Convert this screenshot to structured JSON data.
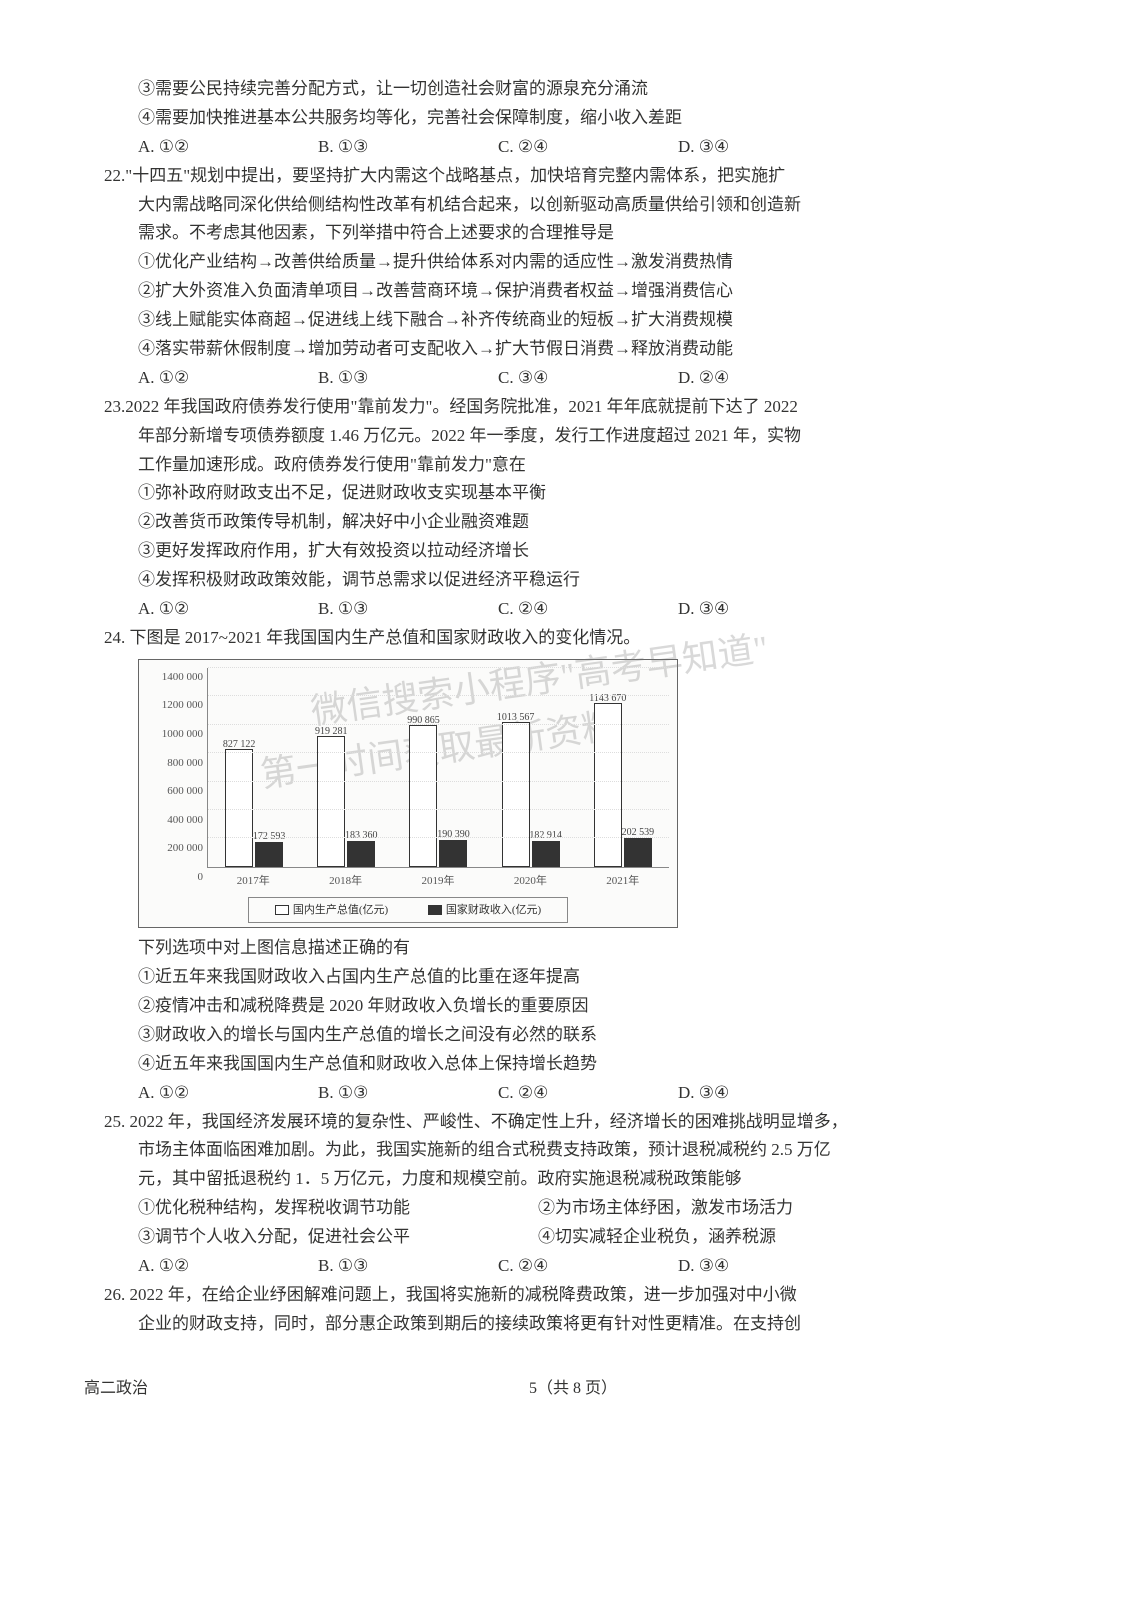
{
  "q21": {
    "opt3": "③需要公民持续完善分配方式，让一切创造社会财富的源泉充分涌流",
    "opt4": "④需要加快推进基本公共服务均等化，完善社会保障制度，缩小收入差距",
    "A": "A. ①②",
    "B": "B. ①③",
    "C": "C. ②④",
    "D": "D. ③④"
  },
  "q22": {
    "num": "22.",
    "stem1": "\"十四五\"规划中提出，要坚持扩大内需这个战略基点，加快培育完整内需体系，把实施扩",
    "stem2": "大内需战略同深化供给侧结构性改革有机结合起来，以创新驱动高质量供给引领和创造新",
    "stem3": "需求。不考虑其他因素，下列举措中符合上述要求的合理推导是",
    "o1": "①优化产业结构→改善供给质量→提升供给体系对内需的适应性→激发消费热情",
    "o2": "②扩大外资准入负面清单项目→改善营商环境→保护消费者权益→增强消费信心",
    "o3": "③线上赋能实体商超→促进线上线下融合→补齐传统商业的短板→扩大消费规模",
    "o4": "④落实带薪休假制度→增加劳动者可支配收入→扩大节假日消费→释放消费动能",
    "A": "A. ①②",
    "B": "B. ①③",
    "C": "C. ③④",
    "D": "D. ②④"
  },
  "q23": {
    "num": "23.",
    "stem1": "2022 年我国政府债券发行使用\"靠前发力\"。经国务院批准，2021 年年底就提前下达了 2022",
    "stem2": "年部分新增专项债券额度 1.46 万亿元。2022 年一季度，发行工作进度超过 2021 年，实物",
    "stem3": "工作量加速形成。政府债券发行使用\"靠前发力\"意在",
    "o1": "①弥补政府财政支出不足，促进财政收支实现基本平衡",
    "o2": "②改善货币政策传导机制，解决好中小企业融资难题",
    "o3": "③更好发挥政府作用，扩大有效投资以拉动经济增长",
    "o4": "④发挥积极财政政策效能，调节总需求以促进经济平稳运行",
    "A": "A. ①②",
    "B": "B. ①③",
    "C": "C. ②④",
    "D": "D. ③④"
  },
  "q24": {
    "num": "24.",
    "stem": " 下图是 2017~2021 年我国国内生产总值和国家财政收入的变化情况。",
    "chart": {
      "ymax": 1400000,
      "yticks": [
        "0",
        "200 000",
        "400 000",
        "600 000",
        "800 000",
        "1000 000",
        "1200 000",
        "1400 000"
      ],
      "years": [
        "2017年",
        "2018年",
        "2019年",
        "2020年",
        "2021年"
      ],
      "gdp_vals": [
        827122,
        919281,
        990865,
        1013567,
        1143670
      ],
      "gdp_labels": [
        "827 122",
        "919 281",
        "990 865",
        "1013 567",
        "1143 670"
      ],
      "rev_vals": [
        172593,
        183360,
        190390,
        182914,
        202539
      ],
      "rev_labels": [
        "172 593",
        "183 360",
        "190 390",
        "182 914",
        "202 539"
      ],
      "legend_gdp": "国内生产总值(亿元)",
      "legend_rev": "国家财政收入(亿元)"
    },
    "after": "下列选项中对上图信息描述正确的有",
    "o1": "①近五年来我国财政收入占国内生产总值的比重在逐年提高",
    "o2": "②疫情冲击和减税降费是 2020 年财政收入负增长的重要原因",
    "o3": "③财政收入的增长与国内生产总值的增长之间没有必然的联系",
    "o4": "④近五年来我国国内生产总值和财政收入总体上保持增长趋势",
    "A": "A. ①②",
    "B": "B. ①③",
    "C": "C. ②④",
    "D": "D. ③④"
  },
  "q25": {
    "num": "25.",
    "stem1": " 2022 年，我国经济发展环境的复杂性、严峻性、不确定性上升，经济增长的困难挑战明显增多，",
    "stem2": "市场主体面临困难加剧。为此，我国实施新的组合式税费支持政策，预计退税减税约 2.5 万亿",
    "stem3": "元，其中留抵退税约 1．5 万亿元，力度和规模空前。政府实施退税减税政策能够",
    "o1": "①优化税种结构，发挥税收调节功能",
    "o2": "②为市场主体纾困，激发市场活力",
    "o3": "③调节个人收入分配，促进社会公平",
    "o4": "④切实减轻企业税负，涵养税源",
    "A": "A. ①②",
    "B": "B. ①③",
    "C": "C. ②④",
    "D": "D. ③④"
  },
  "q26": {
    "num": "26.",
    "stem1": " 2022 年，在给企业纾困解难问题上，我国将实施新的减税降费政策，进一步加强对中小微",
    "stem2": "企业的财政支持，同时，部分惠企政策到期后的接续政策将更有针对性更精准。在支持创"
  },
  "footer": {
    "left": "高二政治",
    "center": "5（共 8 页）"
  },
  "watermarks": {
    "w1": "微信搜索小程序\"高考早知道\"",
    "w2": "第一时间获取最新资料"
  }
}
